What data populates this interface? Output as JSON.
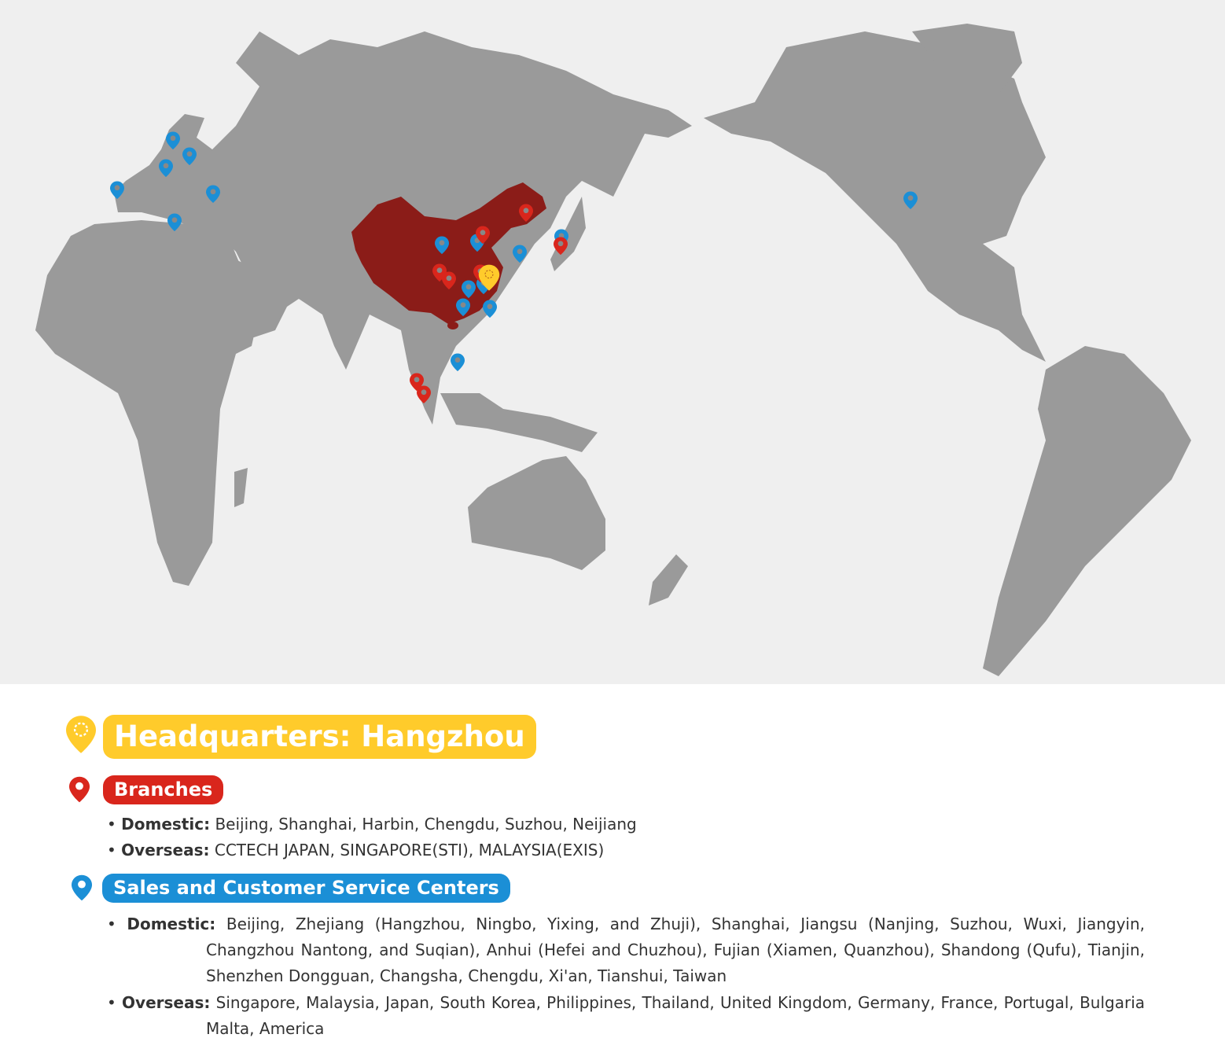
{
  "colors": {
    "land": "#9a9a9a",
    "ocean": "#efefef",
    "china": "#8b1c18",
    "headquarters": "#ffcb2b",
    "branches": "#d9261c",
    "service": "#1b8fd6"
  },
  "legend": {
    "headquarters": {
      "icon": "star-pin-icon",
      "label": "Headquarters: Hangzhou"
    },
    "branches": {
      "icon": "map-pin-icon",
      "label": "Branches",
      "items": [
        {
          "key": "Domestic:",
          "value": "Beijing, Shanghai, Harbin, Chengdu, Suzhou, Neijiang"
        },
        {
          "key": "Overseas:",
          "value": "CCTECH JAPAN, SINGAPORE(STI), MALAYSIA(EXIS)"
        }
      ]
    },
    "service": {
      "icon": "map-pin-icon",
      "label": "Sales and Customer Service Centers",
      "items": [
        {
          "key": "Domestic:",
          "value": "Beijing, Zhejiang (Hangzhou, Ningbo, Yixing, and Zhuji), Shanghai, Jiangsu (Nanjing, Suzhou, Wuxi, Jiangyin, Changzhou Nantong, and Suqian), Anhui (Hefei and Chuzhou), Fujian (Xiamen, Quanzhou), Shandong (Qufu), Tianjin, Shenzhen Dongguan, Changsha, Chengdu, Xi'an, Tianshui, Taiwan"
        },
        {
          "key": "Overseas:",
          "value": "Singapore, Malaysia, Japan, South Korea, Philippines, Thailand, United Kingdom, Germany, France, Portugal, Bulgaria Malta, America"
        }
      ]
    }
  }
}
